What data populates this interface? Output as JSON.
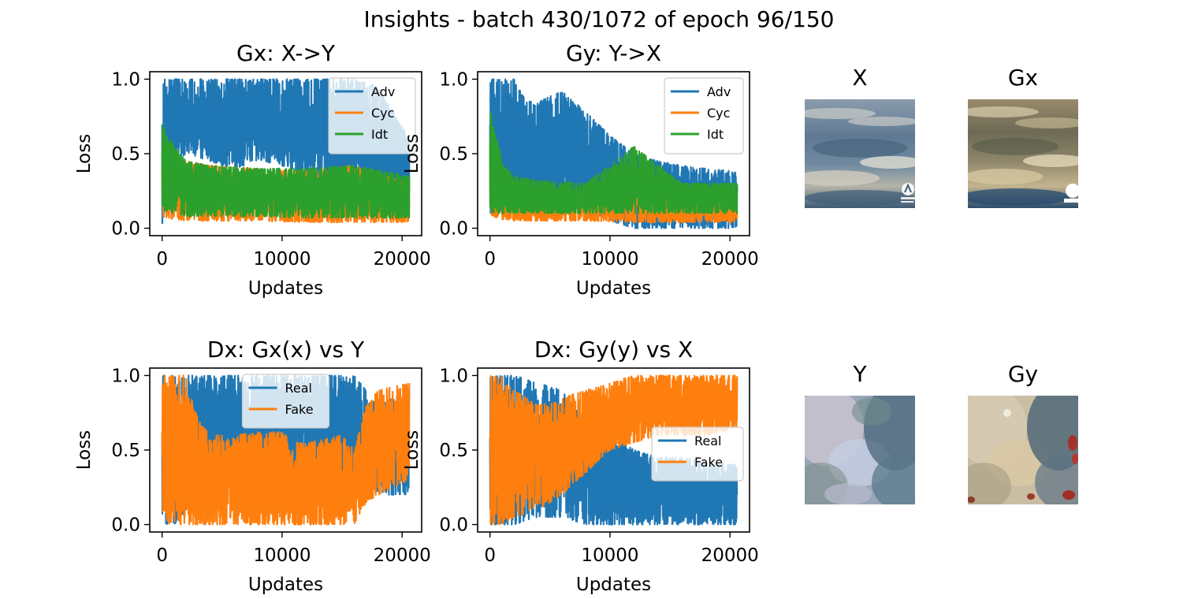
{
  "suptitle": "Insights - batch 430/1072 of epoch 96/150",
  "colors": {
    "blue": "#1f77b4",
    "orange": "#ff7f0e",
    "green": "#2ca02c"
  },
  "chart_data": [
    {
      "type": "line",
      "title": "Gx: X->Y",
      "xlabel": "Updates",
      "ylabel": "Loss",
      "xlim": [
        -1030,
        21630
      ],
      "ylim": [
        -0.05,
        1.05
      ],
      "xticks": [
        0,
        10000,
        20000
      ],
      "yticks": [
        0.0,
        0.5,
        1.0
      ],
      "ytick_labels": [
        "0.0",
        "0.5",
        "1.0"
      ],
      "legend_position": "upper right",
      "series": [
        {
          "name": "Adv",
          "color": "#1f77b4",
          "x": [
            0,
            1000,
            2000,
            4000,
            6000,
            8000,
            10000,
            12000,
            14000,
            16000,
            18000,
            20600
          ],
          "low": [
            0.0,
            0.45,
            0.5,
            0.45,
            0.4,
            0.45,
            0.42,
            0.35,
            0.3,
            0.35,
            0.2,
            0.2
          ],
          "high": [
            1.0,
            1.0,
            1.0,
            1.0,
            1.0,
            1.0,
            1.0,
            1.0,
            1.0,
            1.0,
            0.95,
            0.6
          ]
        },
        {
          "name": "Cyc",
          "color": "#ff7f0e",
          "x": [
            0,
            1000,
            2000,
            4000,
            8000,
            12000,
            16000,
            20600
          ],
          "low": [
            0.08,
            0.06,
            0.05,
            0.05,
            0.05,
            0.04,
            0.04,
            0.04
          ],
          "high": [
            0.55,
            0.45,
            0.45,
            0.42,
            0.4,
            0.38,
            0.42,
            0.3
          ]
        },
        {
          "name": "Idt",
          "color": "#2ca02c",
          "x": [
            0,
            1000,
            2000,
            4000,
            8000,
            12000,
            16000,
            20600
          ],
          "low": [
            0.12,
            0.1,
            0.08,
            0.08,
            0.08,
            0.07,
            0.07,
            0.07
          ],
          "high": [
            0.7,
            0.55,
            0.45,
            0.42,
            0.4,
            0.4,
            0.42,
            0.35
          ]
        }
      ]
    },
    {
      "type": "line",
      "title": "Gy: Y->X",
      "xlabel": "Updates",
      "ylabel": "Loss",
      "xlim": [
        -1030,
        21630
      ],
      "ylim": [
        -0.05,
        1.05
      ],
      "xticks": [
        0,
        10000,
        20000
      ],
      "yticks": [
        0.0,
        0.5,
        1.0
      ],
      "ytick_labels": [
        "0.0",
        "0.5",
        "1.0"
      ],
      "legend_position": "upper right",
      "series": [
        {
          "name": "Adv",
          "color": "#1f77b4",
          "x": [
            0,
            1000,
            2000,
            3000,
            4000,
            6000,
            8000,
            10000,
            12000,
            14000,
            16000,
            18000,
            20600
          ],
          "low": [
            0.1,
            0.1,
            0.1,
            0.1,
            0.15,
            0.15,
            0.12,
            0.05,
            0.0,
            0.0,
            0.0,
            0.0,
            0.0
          ],
          "high": [
            1.0,
            1.0,
            1.0,
            0.85,
            0.85,
            0.92,
            0.78,
            0.62,
            0.5,
            0.45,
            0.42,
            0.4,
            0.38
          ]
        },
        {
          "name": "Cyc",
          "color": "#ff7f0e",
          "x": [
            0,
            1000,
            2000,
            4000,
            8000,
            12000,
            16000,
            20600
          ],
          "low": [
            0.08,
            0.06,
            0.05,
            0.05,
            0.05,
            0.04,
            0.04,
            0.04
          ],
          "high": [
            0.5,
            0.35,
            0.3,
            0.25,
            0.25,
            0.35,
            0.25,
            0.2
          ]
        },
        {
          "name": "Idt",
          "color": "#2ca02c",
          "x": [
            0,
            1000,
            2000,
            4000,
            8000,
            12000,
            16000,
            20600
          ],
          "low": [
            0.1,
            0.1,
            0.1,
            0.1,
            0.1,
            0.1,
            0.1,
            0.1
          ],
          "high": [
            0.8,
            0.45,
            0.35,
            0.32,
            0.3,
            0.55,
            0.3,
            0.3
          ]
        }
      ]
    },
    {
      "type": "line",
      "title": "Dx: Gx(x) vs Y",
      "xlabel": "Updates",
      "ylabel": "Loss",
      "xlim": [
        -1030,
        21630
      ],
      "ylim": [
        -0.05,
        1.05
      ],
      "xticks": [
        0,
        10000,
        20000
      ],
      "yticks": [
        0.0,
        0.5,
        1.0
      ],
      "ytick_labels": [
        "0.0",
        "0.5",
        "1.0"
      ],
      "legend_position": "upper center",
      "series": [
        {
          "name": "Real",
          "color": "#1f77b4",
          "x": [
            0,
            1000,
            2000,
            4000,
            6000,
            8000,
            10000,
            12000,
            14000,
            16000,
            17000,
            18000,
            20600
          ],
          "low": [
            0.0,
            0.0,
            0.1,
            0.3,
            0.3,
            0.35,
            0.3,
            0.35,
            0.4,
            0.3,
            0.25,
            0.2,
            0.2
          ],
          "high": [
            1.0,
            1.0,
            1.0,
            1.0,
            1.0,
            1.0,
            1.0,
            1.0,
            1.0,
            1.0,
            0.9,
            0.8,
            0.9
          ]
        },
        {
          "name": "Fake",
          "color": "#ff7f0e",
          "x": [
            0,
            1000,
            2000,
            3000,
            4000,
            6000,
            8000,
            10000,
            11000,
            12000,
            14000,
            15000,
            16000,
            17000,
            18000,
            20600
          ],
          "low": [
            0.0,
            0.0,
            0.0,
            0.0,
            0.0,
            0.0,
            0.0,
            0.0,
            0.0,
            0.0,
            0.0,
            0.0,
            0.0,
            0.15,
            0.2,
            0.3
          ],
          "high": [
            1.0,
            1.0,
            1.0,
            0.7,
            0.6,
            0.6,
            0.62,
            0.62,
            0.55,
            0.55,
            0.58,
            0.6,
            0.5,
            0.8,
            0.9,
            0.95
          ]
        }
      ]
    },
    {
      "type": "line",
      "title": "Dx: Gy(y) vs X",
      "xlabel": "Updates",
      "ylabel": "Loss",
      "xlim": [
        -1030,
        21630
      ],
      "ylim": [
        -0.05,
        1.05
      ],
      "xticks": [
        0,
        10000,
        20000
      ],
      "yticks": [
        0.0,
        0.5,
        1.0
      ],
      "ytick_labels": [
        "0.0",
        "0.5",
        "1.0"
      ],
      "legend_position": "center right",
      "series": [
        {
          "name": "Real",
          "color": "#1f77b4",
          "x": [
            0,
            1000,
            2000,
            4000,
            6000,
            8000,
            10000,
            12000,
            14000,
            16000,
            18000,
            20600
          ],
          "low": [
            0.0,
            0.0,
            0.0,
            0.05,
            0.05,
            0.0,
            0.0,
            0.0,
            0.0,
            0.0,
            0.0,
            0.0
          ],
          "high": [
            1.0,
            1.0,
            1.0,
            0.95,
            0.9,
            0.7,
            0.62,
            0.5,
            0.45,
            0.45,
            0.42,
            0.4
          ]
        },
        {
          "name": "Fake",
          "color": "#ff7f0e",
          "x": [
            0,
            1000,
            2000,
            4000,
            6000,
            8000,
            10000,
            12000,
            14000,
            16000,
            18000,
            20600
          ],
          "low": [
            0.0,
            0.0,
            0.05,
            0.1,
            0.2,
            0.35,
            0.5,
            0.55,
            0.6,
            0.6,
            0.6,
            0.65
          ],
          "high": [
            1.0,
            1.0,
            0.9,
            0.8,
            0.85,
            0.9,
            0.95,
            1.0,
            1.0,
            1.0,
            1.0,
            1.0
          ]
        }
      ]
    }
  ],
  "images": [
    {
      "title": "X",
      "kind": "sky-clouds-photo"
    },
    {
      "title": "Gx",
      "kind": "sky-clouds-generated"
    },
    {
      "title": "Y",
      "kind": "monet-painting"
    },
    {
      "title": "Gy",
      "kind": "monet-painting-generated"
    }
  ]
}
